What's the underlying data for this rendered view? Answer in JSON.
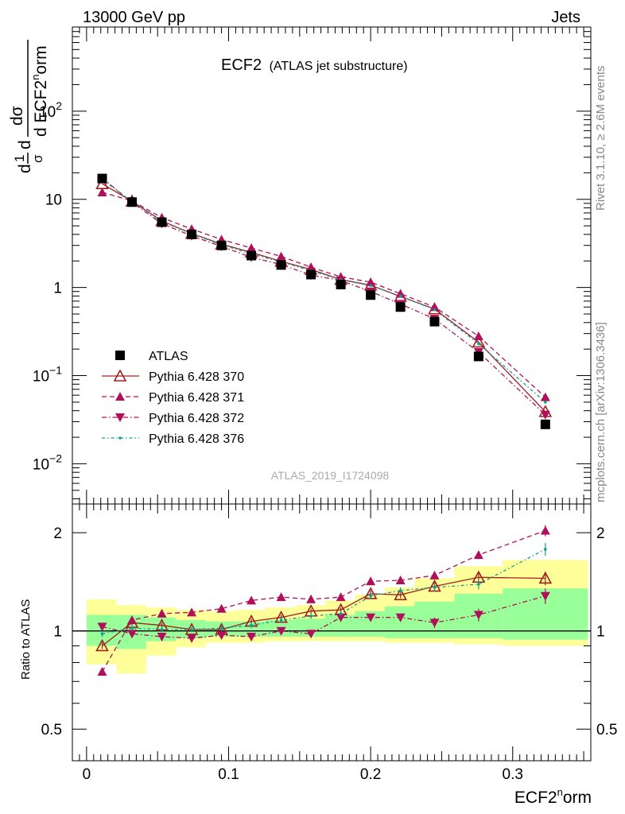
{
  "header": {
    "left": "13000 GeV pp",
    "right": "Jets"
  },
  "title": {
    "main": "ECF2",
    "sub": "(ATLAS jet substructure)"
  },
  "side_text": {
    "top": "Rivet 3.1.10, ≥ 2.6M events",
    "bottom": "mcplots.cern.ch [arXiv:1306.3436]"
  },
  "watermark": "ATLAS_2019_I1724098",
  "ylabel_main": {
    "frac_num": "1",
    "frac_den": "σ",
    "d": "d",
    "dsigma": "dσ",
    "dvar": "d ECF2",
    "sup": "n",
    "tail": "orm"
  },
  "ylabel_ratio": "Ratio to ATLAS",
  "xlabel": {
    "base": "ECF2",
    "sup": "n",
    "tail": "orm"
  },
  "colors": {
    "atlas": "#000000",
    "p370": "#a02020",
    "p371": "#b0105a",
    "p372": "#b0105a",
    "p376": "#10a090",
    "band_inner": "#99ff99",
    "band_outer": "#ffff99"
  },
  "chart_data": [
    {
      "type": "scatter",
      "title": "ECF2",
      "xlabel": "ECF2norm",
      "ylabel": "1/σ dσ/d ECF2norm",
      "yscale": "log",
      "xlim": [
        -0.01,
        0.355
      ],
      "ylim": [
        0.0035,
        900
      ],
      "x_ticks": [
        0,
        0.1,
        0.2,
        0.3
      ],
      "y_ticks": [
        {
          "v": 0.01,
          "b": "10",
          "e": "−2"
        },
        {
          "v": 0.1,
          "b": "10",
          "e": "−1"
        },
        {
          "v": 1,
          "b": "1",
          "e": ""
        },
        {
          "v": 10,
          "b": "10",
          "e": ""
        },
        {
          "v": 100,
          "b": "10",
          "e": "2"
        }
      ],
      "x": [
        0.011,
        0.032,
        0.053,
        0.074,
        0.095,
        0.116,
        0.137,
        0.158,
        0.179,
        0.2,
        0.221,
        0.245,
        0.276,
        0.323
      ],
      "series": [
        {
          "name": "ATLAS",
          "values": [
            17.2,
            9.3,
            5.5,
            4.0,
            3.0,
            2.3,
            1.8,
            1.4,
            1.08,
            0.82,
            0.6,
            0.41,
            0.165,
            0.028
          ]
        },
        {
          "name": "Pythia 6.428 370",
          "values": [
            15.0,
            9.5,
            5.7,
            4.1,
            3.1,
            2.5,
            1.98,
            1.6,
            1.23,
            1.06,
            0.79,
            0.57,
            0.24,
            0.039
          ]
        },
        {
          "name": "Pythia 6.428 371",
          "values": [
            12.0,
            9.6,
            6.2,
            4.6,
            3.5,
            2.8,
            2.25,
            1.7,
            1.32,
            1.15,
            0.85,
            0.6,
            0.28,
            0.057
          ]
        },
        {
          "name": "Pythia 6.428 372",
          "values": [
            17.5,
            9.2,
            5.3,
            3.85,
            2.92,
            2.2,
            1.82,
            1.38,
            1.2,
            0.9,
            0.65,
            0.44,
            0.185,
            0.036
          ]
        },
        {
          "name": "Pythia 6.428 376",
          "values": [
            16.8,
            9.4,
            5.6,
            4.05,
            3.05,
            2.4,
            1.95,
            1.55,
            1.22,
            1.05,
            0.8,
            0.56,
            0.23,
            0.05
          ]
        }
      ]
    },
    {
      "type": "line",
      "ylabel": "Ratio to ATLAS",
      "xlim": [
        -0.01,
        0.355
      ],
      "ylim": [
        0.4,
        2.45
      ],
      "y_ticks": [
        0.5,
        1,
        2
      ],
      "x": [
        0.011,
        0.032,
        0.053,
        0.074,
        0.095,
        0.116,
        0.137,
        0.158,
        0.179,
        0.2,
        0.221,
        0.245,
        0.276,
        0.323
      ],
      "bands": {
        "edges": [
          0,
          0.021,
          0.042,
          0.063,
          0.084,
          0.105,
          0.126,
          0.147,
          0.168,
          0.189,
          0.21,
          0.231,
          0.259,
          0.293,
          0.353
        ],
        "inner_lo": [
          0.9,
          0.88,
          0.93,
          0.95,
          0.96,
          0.96,
          0.96,
          0.96,
          0.96,
          0.96,
          0.95,
          0.95,
          0.95,
          0.94
        ],
        "inner_hi": [
          1.12,
          1.12,
          1.1,
          1.08,
          1.07,
          1.07,
          1.08,
          1.09,
          1.12,
          1.15,
          1.19,
          1.23,
          1.3,
          1.35
        ],
        "outer_lo": [
          0.79,
          0.74,
          0.84,
          0.89,
          0.92,
          0.92,
          0.93,
          0.93,
          0.93,
          0.93,
          0.92,
          0.92,
          0.91,
          0.9
        ],
        "outer_hi": [
          1.25,
          1.2,
          1.18,
          1.16,
          1.15,
          1.16,
          1.18,
          1.2,
          1.24,
          1.29,
          1.36,
          1.45,
          1.58,
          1.65
        ]
      },
      "series": [
        {
          "name": "Pythia 6.428 370",
          "values": [
            0.9,
            1.06,
            1.04,
            1.01,
            1.01,
            1.07,
            1.1,
            1.15,
            1.16,
            1.3,
            1.29,
            1.37,
            1.46,
            1.45
          ],
          "err": [
            0.02,
            0.02,
            0.02,
            0.02,
            0.02,
            0.02,
            0.02,
            0.02,
            0.02,
            0.03,
            0.03,
            0.04,
            0.05,
            0.07
          ]
        },
        {
          "name": "Pythia 6.428 371",
          "values": [
            0.75,
            1.08,
            1.13,
            1.14,
            1.17,
            1.24,
            1.27,
            1.25,
            1.27,
            1.42,
            1.43,
            1.48,
            1.71,
            2.03
          ],
          "err": [
            0.02,
            0.02,
            0.02,
            0.02,
            0.02,
            0.02,
            0.02,
            0.02,
            0.02,
            0.03,
            0.03,
            0.04,
            0.05,
            0.08
          ]
        },
        {
          "name": "Pythia 6.428 372",
          "values": [
            1.03,
            0.98,
            0.96,
            0.95,
            0.97,
            0.96,
            1.0,
            0.98,
            1.1,
            1.1,
            1.1,
            1.06,
            1.12,
            1.28
          ],
          "err": [
            0.02,
            0.02,
            0.02,
            0.02,
            0.02,
            0.02,
            0.02,
            0.02,
            0.02,
            0.03,
            0.03,
            0.04,
            0.05,
            0.07
          ]
        },
        {
          "name": "Pythia 6.428 376",
          "values": [
            0.98,
            1.02,
            1.01,
            1.01,
            1.02,
            1.04,
            1.08,
            1.11,
            1.13,
            1.28,
            1.33,
            1.36,
            1.39,
            1.78
          ],
          "err": [
            0.02,
            0.02,
            0.02,
            0.02,
            0.02,
            0.02,
            0.02,
            0.02,
            0.02,
            0.03,
            0.03,
            0.04,
            0.05,
            0.08
          ]
        }
      ]
    }
  ]
}
